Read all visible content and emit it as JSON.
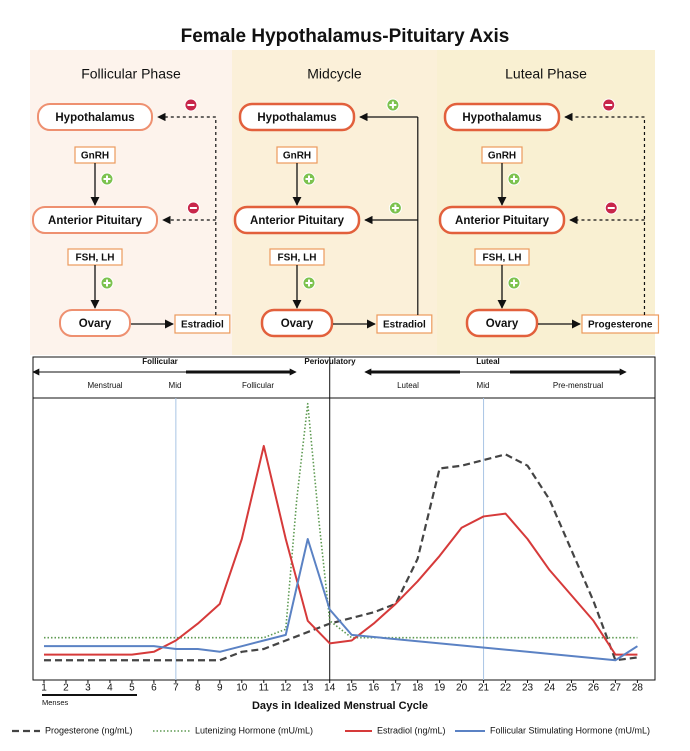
{
  "title": "Female Hypothalamus-Pituitary Axis",
  "phases": [
    {
      "name": "Follicular Phase",
      "hypothalamus": "Hypothalamus",
      "releasing_hormone": "GnRH",
      "pituitary": "Anterior Pituitary",
      "gonadotropins": "FSH, LH",
      "gonad": "Ovary",
      "ovarian_hormone": "Estradiol",
      "feedback": "negative",
      "color": "#fdf3ec"
    },
    {
      "name": "Midcycle",
      "hypothalamus": "Hypothalamus",
      "releasing_hormone": "GnRH",
      "pituitary": "Anterior Pituitary",
      "gonadotropins": "FSH, LH",
      "gonad": "Ovary",
      "ovarian_hormone": "Estradiol",
      "feedback": "positive",
      "color": "#fbf0d9"
    },
    {
      "name": "Luteal Phase",
      "hypothalamus": "Hypothalamus",
      "releasing_hormone": "GnRH",
      "pituitary": "Anterior Pituitary",
      "gonadotropins": "FSH, LH",
      "gonad": "Ovary",
      "ovarian_hormone": "Progesterone",
      "feedback": "negative",
      "color": "#f9f0d2"
    }
  ],
  "chart_data": {
    "type": "line",
    "phase_labels": [
      "Follicular",
      "Periovulatory",
      "Luteal"
    ],
    "subphase_labels": [
      "Menstrual",
      "Mid",
      "Follicular",
      "Luteal",
      "Mid",
      "Pre-menstrual"
    ],
    "x_label": "Days in Idealized Menstrual Cycle",
    "menses_label": "Menses",
    "xlim": [
      0.5,
      28.8
    ],
    "xticks": [
      1,
      2,
      3,
      4,
      5,
      6,
      7,
      8,
      9,
      10,
      11,
      12,
      13,
      14,
      15,
      16,
      17,
      18,
      19,
      20,
      21,
      22,
      23,
      24,
      25,
      26,
      27,
      28
    ],
    "ylim": [
      0,
      100
    ],
    "mid_lines": [
      7,
      21
    ],
    "ovulation_line": 14,
    "series": [
      {
        "name": "Progesterone (ng/mL)",
        "color": "#444444",
        "dash": "dashed",
        "x": [
          1,
          2,
          3,
          4,
          5,
          6,
          7,
          8,
          9,
          10,
          11,
          12,
          13,
          14,
          15,
          16,
          17,
          18,
          19,
          20,
          21,
          22,
          23,
          24,
          25,
          26,
          27,
          28
        ],
        "values": [
          7,
          7,
          7,
          7,
          7,
          7,
          7,
          7,
          7,
          10,
          11,
          14,
          17,
          20,
          22,
          24,
          27,
          43,
          75,
          76,
          78,
          80,
          76,
          64,
          46,
          28,
          7,
          8
        ]
      },
      {
        "name": "Lutenizing Hormone (mU/mL)",
        "color": "#5e9a52",
        "dash": "dotted",
        "x": [
          1,
          2,
          3,
          4,
          5,
          6,
          7,
          8,
          9,
          10,
          11,
          12,
          12.5,
          13,
          13.5,
          14,
          15,
          16,
          17,
          18,
          19,
          20,
          21,
          22,
          23,
          24,
          25,
          26,
          27,
          28
        ],
        "values": [
          15,
          15,
          15,
          15,
          15,
          15,
          15,
          15,
          15,
          15,
          15,
          18,
          64,
          98,
          57,
          21,
          15,
          15,
          15,
          15,
          15,
          15,
          15,
          15,
          15,
          15,
          15,
          15,
          15,
          15
        ]
      },
      {
        "name": "Estradiol (ng/mL)",
        "color": "#d63a3a",
        "dash": "solid",
        "x": [
          1,
          2,
          3,
          4,
          5,
          6,
          7,
          8,
          9,
          10,
          11,
          12,
          13,
          14,
          15,
          16,
          17,
          18,
          19,
          20,
          21,
          22,
          23,
          24,
          25,
          26,
          27,
          28
        ],
        "values": [
          9,
          9,
          9,
          9,
          9,
          10,
          14,
          20,
          27,
          50,
          83,
          50,
          21,
          13,
          14,
          20,
          27,
          35,
          44,
          54,
          58,
          59,
          50,
          39,
          30,
          21,
          9,
          9
        ]
      },
      {
        "name": "Follicular Stimulating Hormone (mU/mL)",
        "color": "#5b82c4",
        "dash": "solid",
        "x": [
          1,
          2,
          3,
          4,
          5,
          6,
          7,
          8,
          9,
          10,
          11,
          12,
          13,
          14,
          15,
          27,
          28
        ],
        "values": [
          12,
          12,
          12,
          12,
          12,
          12,
          11,
          11,
          10,
          12,
          14,
          16,
          50,
          25,
          16,
          7,
          12
        ]
      }
    ]
  }
}
